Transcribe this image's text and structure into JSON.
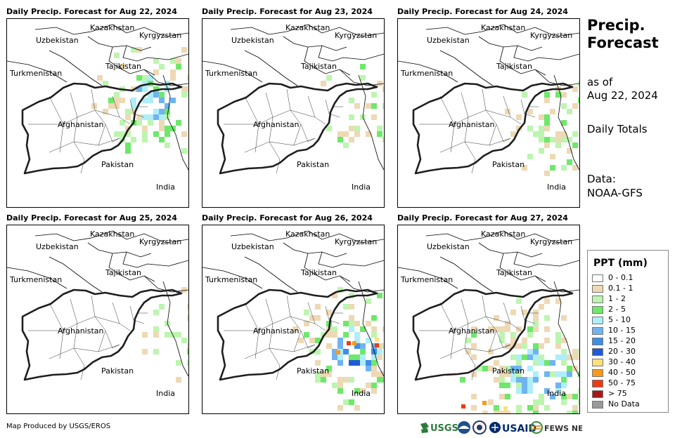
{
  "panels": [
    {
      "title": "Daily Precip. Forecast for Aug 22, 2024",
      "pattern": "day1"
    },
    {
      "title": "Daily Precip. Forecast for Aug 23, 2024",
      "pattern": "day2"
    },
    {
      "title": "Daily Precip. Forecast for Aug 24, 2024",
      "pattern": "day3"
    },
    {
      "title": "Daily Precip. Forecast for Aug 25, 2024",
      "pattern": "day4"
    },
    {
      "title": "Daily Precip. Forecast for Aug 26, 2024",
      "pattern": "day5"
    },
    {
      "title": "Daily Precip. Forecast for Aug 27, 2024",
      "pattern": "day6"
    }
  ],
  "map_labels": {
    "kazakhstan": "Kazakhstan",
    "kyrgyzstan": "Kyrgyzstan",
    "uzbekistan": "Uzbekistan",
    "tajikistan": "Tajikistan",
    "turkmenistan": "Turkmenistan",
    "afghanistan": "Afghanistan",
    "pakistan": "Pakistan",
    "india": "India"
  },
  "side": {
    "title": "Precip. Forecast",
    "as_of": "as of",
    "date": "Aug 22, 2024",
    "totals": "Daily Totals",
    "data_label": "Data:",
    "data_source": "NOAA-GFS"
  },
  "legend": {
    "title": "PPT (mm)",
    "items": [
      {
        "label": "0 - 0.1",
        "color": "#ffffff"
      },
      {
        "label": "0.1 - 1",
        "color": "#eed9b5"
      },
      {
        "label": "1 - 2",
        "color": "#bdf5b0"
      },
      {
        "label": "2 - 5",
        "color": "#6ee86a"
      },
      {
        "label": "5 - 10",
        "color": "#aeeefa"
      },
      {
        "label": "10 - 15",
        "color": "#6fb4f0"
      },
      {
        "label": "15 - 20",
        "color": "#3c8ee8"
      },
      {
        "label": "20 - 30",
        "color": "#1f5ad6"
      },
      {
        "label": "30 - 40",
        "color": "#fde07a"
      },
      {
        "label": "40 - 50",
        "color": "#f79a1a"
      },
      {
        "label": "50 - 75",
        "color": "#ee3a12"
      },
      {
        "label": "> 75",
        "color": "#a51919"
      },
      {
        "label": "No Data",
        "color": "#999999"
      }
    ]
  },
  "credit": "Map Produced by USGS/EROS",
  "logos": {
    "usgs": "USGS",
    "usaid": "USAID",
    "fewsnet": "FEWS NET"
  }
}
